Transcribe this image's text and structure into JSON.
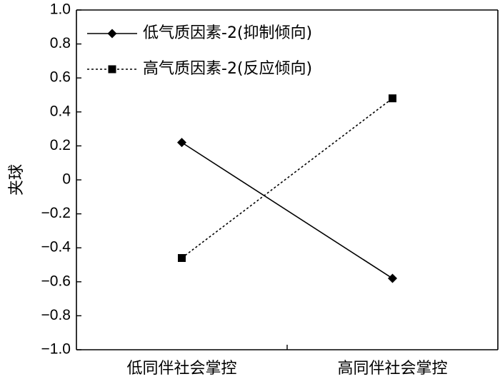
{
  "chart_data": {
    "type": "line",
    "ylabel": "夹球",
    "xlabel": "",
    "ylim": [
      -1.0,
      1.0
    ],
    "ytick_labels": [
      "1.0",
      "0.8",
      "0.6",
      "0.4",
      "0.2",
      "0",
      "−0.2",
      "−0.4",
      "−0.6",
      "−0.8",
      "−1.0"
    ],
    "yticks": [
      1.0,
      0.8,
      0.6,
      0.4,
      0.2,
      0,
      -0.2,
      -0.4,
      -0.6,
      -0.8,
      -1.0
    ],
    "categories": [
      "低同伴社会掌控",
      "高同伴社会掌控"
    ],
    "series": [
      {
        "name": "低气质因素-2(抑制倾向)",
        "values": [
          0.22,
          -0.58
        ],
        "style": "solid",
        "marker": "diamond",
        "color": "#000000"
      },
      {
        "name": "高气质因素-2(反应倾向)",
        "values": [
          -0.46,
          0.48
        ],
        "style": "dotted",
        "marker": "square",
        "color": "#000000"
      }
    ],
    "legend_position": "top-left",
    "grid": false
  }
}
